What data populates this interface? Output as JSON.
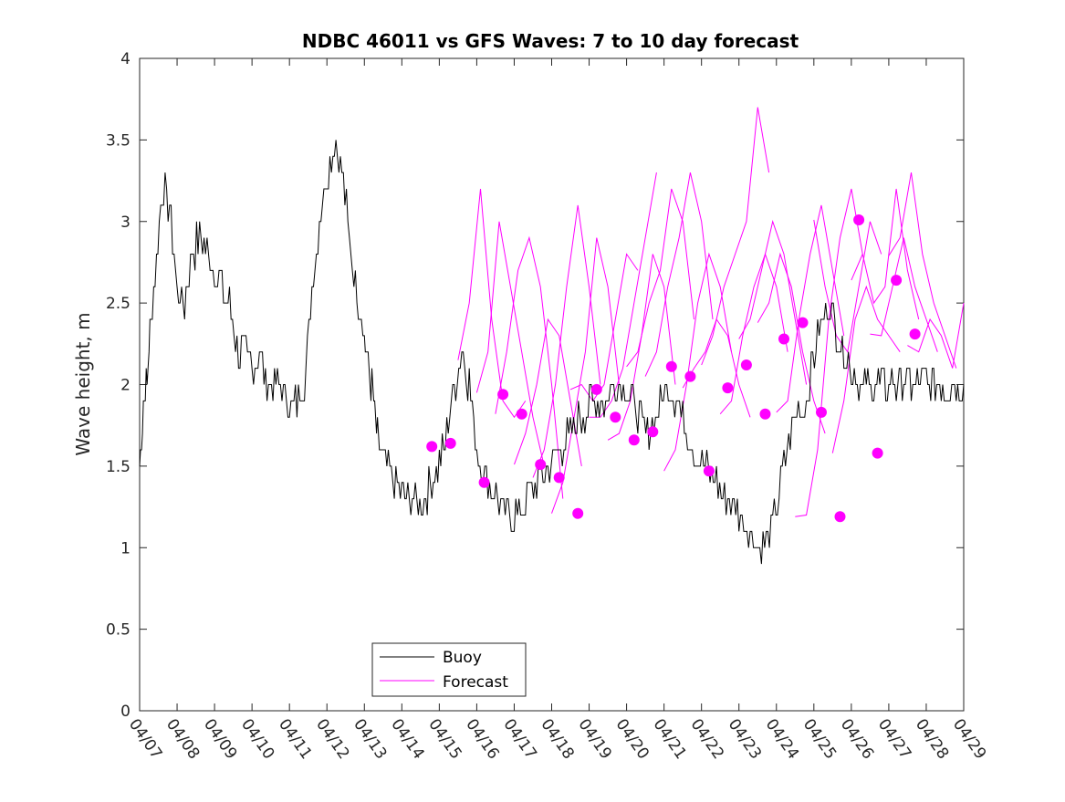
{
  "chart_data": {
    "type": "line",
    "title": "NDBC 46011 vs GFS Waves: 7 to 10 day forecast",
    "xlabel": "",
    "ylabel": "Wave height, m",
    "xlim": [
      "04/07",
      "04/29"
    ],
    "ylim": [
      0,
      4
    ],
    "x_ticks": [
      "04/07",
      "04/08",
      "04/09",
      "04/10",
      "04/11",
      "04/12",
      "04/13",
      "04/14",
      "04/15",
      "04/16",
      "04/17",
      "04/18",
      "04/19",
      "04/20",
      "04/21",
      "04/22",
      "04/23",
      "04/24",
      "04/25",
      "04/26",
      "04/27",
      "04/28",
      "04/29"
    ],
    "y_ticks": [
      0,
      0.5,
      1,
      1.5,
      2,
      2.5,
      3,
      3.5,
      4
    ],
    "grid": false,
    "legend": {
      "placement": "bottom-center",
      "entries": [
        "Buoy",
        "Forecast"
      ]
    },
    "colors": {
      "buoy": "#000000",
      "forecast": "#ff00ff"
    },
    "series": [
      {
        "name": "Buoy",
        "x_day": [
          0.0,
          0.1,
          0.2,
          0.3,
          0.45,
          0.6,
          0.8,
          1.0,
          1.2,
          1.4,
          1.6,
          1.8,
          2.0,
          2.2,
          2.4,
          2.6,
          2.8,
          3.0,
          3.2,
          3.4,
          3.6,
          3.8,
          4.0,
          4.2,
          4.4,
          4.6,
          4.8,
          5.0,
          5.2,
          5.4,
          5.6,
          5.8,
          6.0,
          6.1,
          6.2,
          6.3,
          6.4,
          6.6,
          6.8,
          7.0,
          7.2,
          7.4,
          7.6,
          7.8,
          8.0,
          8.2,
          8.4,
          8.6,
          8.8,
          9.0,
          9.3,
          9.6,
          9.8,
          10.0,
          10.3,
          10.6,
          10.9,
          11.2,
          11.5,
          11.8,
          12.1,
          12.4,
          12.7,
          13.0,
          13.3,
          13.6,
          13.9,
          14.2,
          14.5,
          14.8,
          15.1,
          15.4,
          15.7,
          16.0,
          16.3,
          16.6,
          16.9,
          17.2,
          17.5,
          17.8,
          18.1,
          18.4,
          18.6,
          18.8,
          19.0,
          19.2,
          19.4,
          19.6,
          19.8,
          20.0,
          20.2,
          20.4,
          20.6,
          20.8,
          21.0,
          21.2,
          21.4,
          21.6,
          21.8,
          22.0
        ],
        "values": [
          1.5,
          1.9,
          2.0,
          2.4,
          2.8,
          3.2,
          3.1,
          2.6,
          2.5,
          2.8,
          2.9,
          2.8,
          2.7,
          2.6,
          2.5,
          2.2,
          2.2,
          2.1,
          2.2,
          2.0,
          2.0,
          2.0,
          1.9,
          1.9,
          2.0,
          2.6,
          3.0,
          3.3,
          3.5,
          3.3,
          2.9,
          2.6,
          2.3,
          2.1,
          2.0,
          1.8,
          1.6,
          1.5,
          1.4,
          1.35,
          1.3,
          1.3,
          1.3,
          1.4,
          1.5,
          1.7,
          2.0,
          2.2,
          2.0,
          1.6,
          1.4,
          1.3,
          1.2,
          1.2,
          1.3,
          1.4,
          1.5,
          1.6,
          1.7,
          1.8,
          1.9,
          1.9,
          2.0,
          2.0,
          1.8,
          1.7,
          1.9,
          2.0,
          1.8,
          1.6,
          1.5,
          1.4,
          1.3,
          1.2,
          1.1,
          1.0,
          1.1,
          1.5,
          1.8,
          1.9,
          2.3,
          2.5,
          2.3,
          2.2,
          2.1,
          2.0,
          2.0,
          2.0,
          2.0,
          2.0,
          2.0,
          2.0,
          2.0,
          2.0,
          2.0,
          2.0,
          2.0,
          2.0,
          2.0,
          2.0
        ]
      },
      {
        "name": "Forecast",
        "runs": [
          {
            "x_day": [
              8.5,
              8.8,
              9.1,
              9.4,
              9.7,
              10.0,
              10.3
            ],
            "values": [
              2.15,
              2.5,
              3.2,
              2.4,
              1.9,
              1.8,
              1.9
            ]
          },
          {
            "x_day": [
              9.0,
              9.3,
              9.6,
              9.9,
              10.2,
              10.5,
              10.8
            ],
            "values": [
              1.95,
              2.2,
              3.0,
              2.6,
              2.2,
              1.8,
              1.5
            ]
          },
          {
            "x_day": [
              9.5,
              9.8,
              10.1,
              10.4,
              10.7,
              11.0,
              11.3
            ],
            "values": [
              1.82,
              2.2,
              2.7,
              2.9,
              2.6,
              2.0,
              1.3
            ]
          },
          {
            "x_day": [
              10.0,
              10.3,
              10.6,
              10.9,
              11.2,
              11.5,
              11.8
            ],
            "values": [
              1.51,
              1.7,
              2.0,
              2.4,
              2.3,
              1.9,
              1.5
            ]
          },
          {
            "x_day": [
              10.5,
              10.8,
              11.1,
              11.4,
              11.7,
              12.0,
              12.3
            ],
            "values": [
              1.43,
              1.6,
              2.0,
              2.6,
              3.1,
              2.6,
              2.0
            ]
          },
          {
            "x_day": [
              11.0,
              11.3,
              11.6,
              11.9,
              12.2,
              12.5,
              12.8
            ],
            "values": [
              1.21,
              1.4,
              1.8,
              2.2,
              2.9,
              2.6,
              2.0
            ]
          },
          {
            "x_day": [
              11.5,
              11.8,
              12.1,
              12.4,
              12.7,
              13.0,
              13.3
            ],
            "values": [
              1.97,
              2.0,
              1.9,
              2.0,
              2.4,
              2.8,
              2.7
            ]
          },
          {
            "x_day": [
              12.0,
              12.3,
              12.6,
              12.9,
              13.2,
              13.5,
              13.8
            ],
            "values": [
              1.8,
              1.8,
              1.9,
              2.1,
              2.5,
              2.9,
              3.3
            ]
          },
          {
            "x_day": [
              12.5,
              12.8,
              13.1,
              13.4,
              13.7,
              14.0,
              14.3
            ],
            "values": [
              1.66,
              1.7,
              1.9,
              2.3,
              2.8,
              2.6,
              2.0
            ]
          },
          {
            "x_day": [
              13.0,
              13.3,
              13.6,
              13.9,
              14.2,
              14.5,
              14.8
            ],
            "values": [
              2.11,
              2.2,
              2.5,
              2.7,
              3.2,
              3.0,
              2.4
            ]
          },
          {
            "x_day": [
              13.5,
              13.8,
              14.1,
              14.4,
              14.7,
              15.0,
              15.3
            ],
            "values": [
              2.05,
              2.2,
              2.6,
              2.9,
              3.3,
              3.0,
              2.4
            ]
          },
          {
            "x_day": [
              14.0,
              14.3,
              14.6,
              14.9,
              15.2,
              15.5,
              15.8
            ],
            "values": [
              1.47,
              1.6,
              2.0,
              2.5,
              2.8,
              2.6,
              2.2
            ]
          },
          {
            "x_day": [
              14.5,
              14.8,
              15.1,
              15.4,
              15.7,
              16.0,
              16.3
            ],
            "values": [
              1.98,
              2.1,
              2.2,
              2.4,
              2.3,
              2.0,
              1.8
            ]
          },
          {
            "x_day": [
              15.0,
              15.3,
              15.6,
              15.9,
              16.2,
              16.5,
              16.8
            ],
            "values": [
              2.12,
              2.3,
              2.6,
              2.8,
              3.0,
              3.7,
              3.3
            ]
          },
          {
            "x_day": [
              15.5,
              15.8,
              16.1,
              16.4,
              16.7,
              17.0,
              17.3
            ],
            "values": [
              1.82,
              1.9,
              2.3,
              2.6,
              2.8,
              2.6,
              2.2
            ]
          },
          {
            "x_day": [
              16.0,
              16.3,
              16.6,
              16.9,
              17.2,
              17.5,
              17.8
            ],
            "values": [
              2.28,
              2.4,
              2.7,
              3.0,
              2.8,
              2.4,
              2.0
            ]
          },
          {
            "x_day": [
              16.5,
              16.8,
              17.1,
              17.4,
              17.7,
              18.0,
              18.3
            ],
            "values": [
              2.38,
              2.5,
              2.8,
              2.6,
              2.2,
              1.9,
              1.7
            ]
          },
          {
            "x_day": [
              17.0,
              17.3,
              17.6,
              17.9,
              18.2,
              18.5,
              18.8
            ],
            "values": [
              1.83,
              1.9,
              2.4,
              2.8,
              3.1,
              2.7,
              2.3
            ]
          },
          {
            "x_day": [
              17.5,
              17.8,
              18.1,
              18.4,
              18.7,
              19.0,
              19.3
            ],
            "values": [
              1.19,
              1.2,
              1.6,
              2.4,
              2.9,
              3.2,
              2.8
            ]
          },
          {
            "x_day": [
              18.0,
              18.3,
              18.6,
              18.9,
              19.2,
              19.5,
              19.8
            ],
            "values": [
              3.01,
              2.6,
              2.3,
              2.2,
              2.6,
              3.0,
              2.8
            ]
          },
          {
            "x_day": [
              18.5,
              18.8,
              19.1,
              19.4,
              19.7,
              20.0,
              20.3
            ],
            "values": [
              1.58,
              1.9,
              2.4,
              2.6,
              2.4,
              2.3,
              2.2
            ]
          },
          {
            "x_day": [
              19.0,
              19.3,
              19.6,
              19.9,
              20.2,
              20.5,
              20.8
            ],
            "values": [
              2.64,
              2.8,
              2.5,
              2.6,
              3.2,
              2.7,
              2.4
            ]
          },
          {
            "x_day": [
              19.5,
              19.8,
              20.1,
              20.4,
              20.7,
              21.0,
              21.3
            ],
            "values": [
              2.31,
              2.3,
              2.6,
              2.9,
              2.6,
              2.4,
              2.2
            ]
          },
          {
            "x_day": [
              20.0,
              20.3,
              20.6,
              20.9,
              21.2,
              21.5,
              21.8
            ],
            "values": [
              2.79,
              2.9,
              3.3,
              2.8,
              2.5,
              2.3,
              2.1
            ]
          },
          {
            "x_day": [
              20.5,
              20.8,
              21.1,
              21.4,
              21.7,
              22.0
            ],
            "values": [
              2.24,
              2.2,
              2.4,
              2.3,
              2.1,
              2.5
            ]
          }
        ],
        "markers": {
          "x_day": [
            7.8,
            8.3,
            9.2,
            9.7,
            10.2,
            10.7,
            11.2,
            11.7,
            12.2,
            12.7,
            13.2,
            13.7,
            14.2,
            14.7,
            15.2,
            15.7,
            16.2,
            16.7,
            17.2,
            17.7,
            18.2,
            18.7,
            19.2,
            19.7,
            20.2,
            20.7
          ],
          "values": [
            1.62,
            1.64,
            1.4,
            1.94,
            1.82,
            1.51,
            1.43,
            1.21,
            1.97,
            1.8,
            1.66,
            1.71,
            2.11,
            2.05,
            1.47,
            1.98,
            2.12,
            1.82,
            2.28,
            2.38,
            1.83,
            1.19,
            3.01,
            1.58,
            2.64,
            2.31
          ]
        }
      }
    ]
  }
}
